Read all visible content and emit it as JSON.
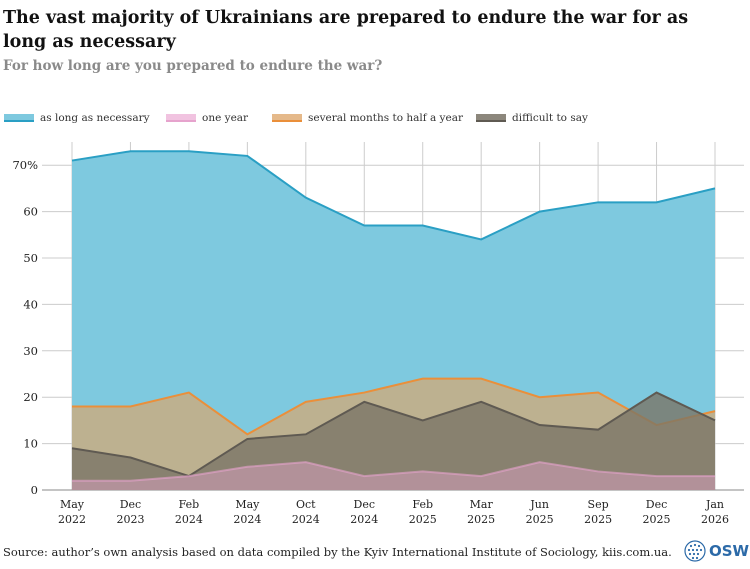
{
  "title": "The vast majority of Ukrainians are prepared to endure the war for as long as necessary",
  "subtitle": "For how long are you prepared to endure the war?",
  "source": "Source: author’s own analysis based on data compiled by the Kyiv International Institute of Sociology, kiis.com.ua.",
  "logo": {
    "text": "OSW"
  },
  "colors": {
    "as_long_as_necessary": "#7ec9df",
    "as_long_as_necessary_line": "#2a9fc4",
    "one_year": "#e6a3cd",
    "several_months": "#c8ad82",
    "several_months_line": "#ea8f3a",
    "difficult_to_say": "#7a7566",
    "difficult_to_say_line": "#5f5a52",
    "grid": "#cccccc",
    "logo": "#2c6aa8"
  },
  "chart_data": {
    "type": "area",
    "title": "The vast majority of Ukrainians are prepared to endure the war for as long as necessary",
    "subtitle": "For how long are you prepared to endure the war?",
    "xlabel": "",
    "ylabel": "",
    "ylim": [
      0,
      75
    ],
    "y_ticks": [
      "0",
      "10",
      "20",
      "30",
      "40",
      "50",
      "60",
      "70%"
    ],
    "y_tick_values": [
      0,
      10,
      20,
      30,
      40,
      50,
      60,
      70
    ],
    "grid": true,
    "legend_position": "top-left",
    "categories": [
      [
        "May",
        "2022"
      ],
      [
        "Dec",
        "2023"
      ],
      [
        "Feb",
        "2024"
      ],
      [
        "May",
        "2024"
      ],
      [
        "Oct",
        "2024"
      ],
      [
        "Dec",
        "2024"
      ],
      [
        "Feb",
        "2025"
      ],
      [
        "Mar",
        "2025"
      ],
      [
        "Jun",
        "2025"
      ],
      [
        "Sep",
        "2025"
      ],
      [
        "Dec",
        "2025"
      ],
      [
        "Jan",
        "2026"
      ]
    ],
    "series": [
      {
        "name": "as long as necessary",
        "values": [
          71,
          73,
          73,
          72,
          63,
          57,
          57,
          54,
          60,
          62,
          62,
          65
        ]
      },
      {
        "name": "one year",
        "values": [
          2,
          2,
          3,
          5,
          6,
          3,
          4,
          3,
          6,
          4,
          3,
          3
        ]
      },
      {
        "name": "several months to half a year",
        "values": [
          18,
          18,
          21,
          12,
          19,
          21,
          24,
          24,
          20,
          21,
          14,
          17
        ]
      },
      {
        "name": "difficult to say",
        "values": [
          9,
          7,
          3,
          11,
          12,
          19,
          15,
          19,
          14,
          13,
          21,
          15
        ]
      }
    ]
  }
}
